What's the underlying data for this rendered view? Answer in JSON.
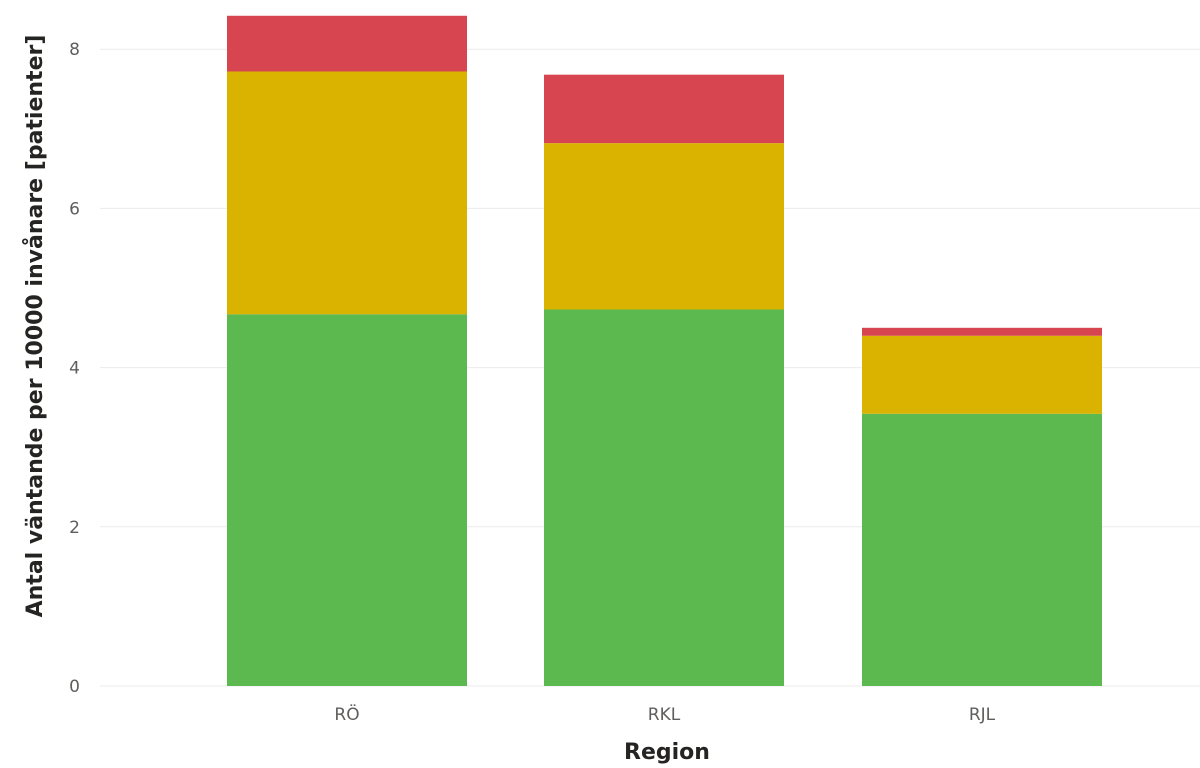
{
  "chart_data": {
    "type": "bar",
    "stacked": true,
    "categories": [
      "RÖ",
      "RKL",
      "RJL"
    ],
    "series": [
      {
        "values": [
          4.67,
          4.73,
          3.42
        ],
        "color": "#5cb950"
      },
      {
        "values": [
          3.05,
          2.09,
          0.98
        ],
        "color": "#d9b300"
      },
      {
        "values": [
          0.7,
          0.86,
          0.1
        ],
        "color": "#d64550"
      }
    ],
    "xlabel": "Region",
    "ylabel": "Antal väntande per 10000 invånare [patienter]",
    "ylim": [
      0,
      8.5
    ],
    "yticks": [
      0,
      2,
      4,
      6,
      8
    ],
    "grid": true,
    "legend": "none"
  }
}
